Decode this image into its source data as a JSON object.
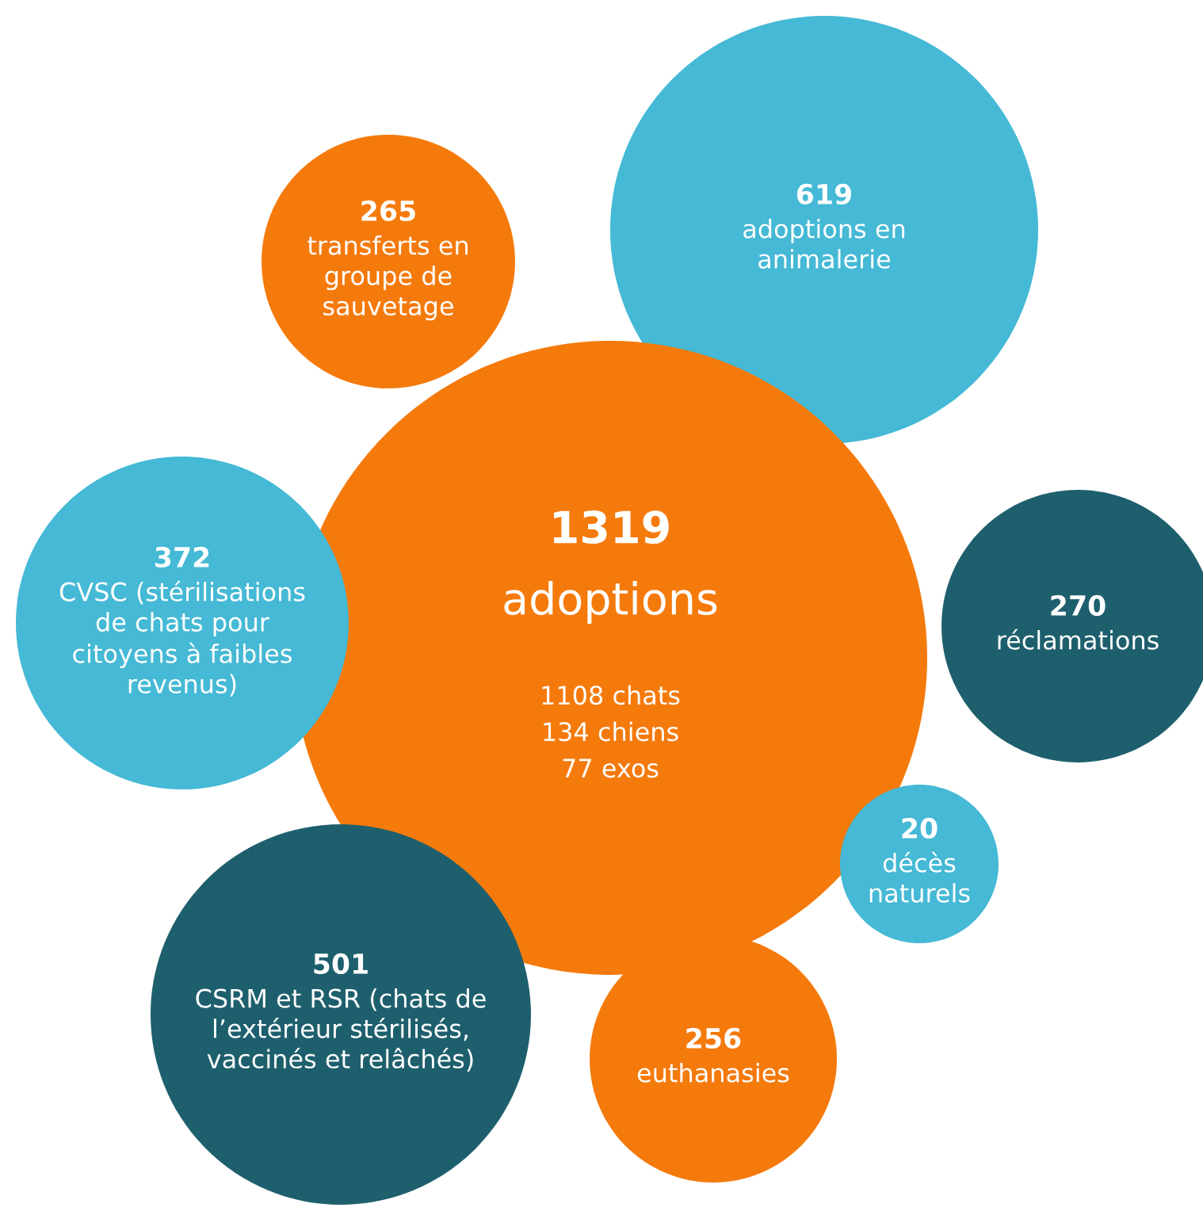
{
  "chart_data": {
    "type": "other",
    "categories": [
      "adoptions en animalerie",
      "transferts en groupe de sauvetage",
      "adoptions",
      "réclamations",
      "CVSC (stérilisations de chats pour citoyens à faibles revenus)",
      "CSRM et RSR (chats de l’extérieur stérilisés, vaccinés et relâchés)",
      "euthanasies",
      "décès naturels"
    ],
    "values": [
      619,
      265,
      1319,
      270,
      372,
      501,
      256,
      20
    ],
    "colors": [
      "#45b9d5",
      "#f57a0c",
      "#f57a0c",
      "#1e5f6d",
      "#45b9d5",
      "#1e5f6d",
      "#f57a0c",
      "#45b9d5"
    ],
    "data_labels": true,
    "annotations": [
      "1108 chats",
      "134 chiens",
      "77 exos"
    ]
  }
}
